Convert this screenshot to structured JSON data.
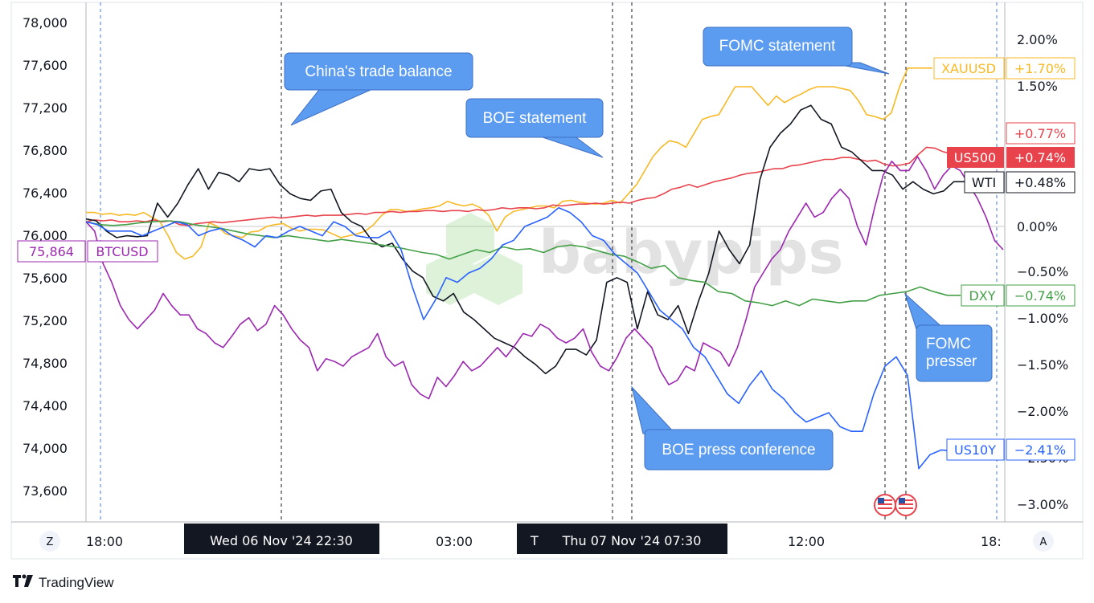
{
  "chart_data": {
    "type": "line",
    "left_axis": {
      "ticks": [
        "78,000",
        "77,600",
        "77,200",
        "76,800",
        "76,400",
        "76,000",
        "75,600",
        "75,200",
        "74,800",
        "74,400",
        "74,000",
        "73,600"
      ],
      "ylim": [
        73300,
        78200
      ]
    },
    "right_axis": {
      "ticks": [
        "2.00%",
        "1.50%",
        "0.00%",
        "−0.50%",
        "−1.00%",
        "−1.50%",
        "−2.00%",
        "−2.50%",
        "−3.00%"
      ],
      "ylim_pct": [
        -3.2,
        2.0
      ]
    },
    "time_axis": {
      "ticks": [
        "18:00",
        "03:00",
        "12:00",
        "18:"
      ],
      "highlight_labels": [
        "Wed 06 Nov '24   22:30",
        "T",
        "Thu 07 Nov '24   07:30"
      ],
      "left_button": "Z",
      "right_button": "A"
    },
    "series": [
      {
        "name": "XAUUSD",
        "color": "#f7b924",
        "end_label": "+1.70%",
        "values": [
          0.15,
          0.15,
          0.13,
          0.14,
          0.12,
          0.13,
          0.12,
          0.15,
          0.1,
          0.05,
          -0.1,
          -0.28,
          -0.35,
          -0.32,
          -0.22,
          0.04,
          0.0,
          -0.08,
          -0.1,
          -0.12,
          -0.06,
          -0.05,
          0.0,
          0.02,
          0.03,
          -0.02,
          -0.05,
          -0.03,
          -0.03,
          -0.04,
          -0.08,
          -0.12,
          -0.1,
          -0.08,
          -0.05,
          0.02,
          0.12,
          0.18,
          0.18,
          0.16,
          0.17,
          0.19,
          0.2,
          0.22,
          0.27,
          0.24,
          0.22,
          0.24,
          0.2,
          0.12,
          -0.05,
          0.1,
          0.16,
          0.18,
          0.2,
          0.22,
          0.22,
          0.2,
          0.27,
          0.28,
          0.26,
          0.25,
          0.24,
          0.25,
          0.28,
          0.25,
          0.35,
          0.45,
          0.6,
          0.75,
          0.85,
          0.92,
          0.9,
          0.85,
          1.0,
          1.15,
          1.18,
          1.2,
          1.35,
          1.5,
          1.5,
          1.5,
          1.4,
          1.3,
          1.4,
          1.33,
          1.38,
          1.42,
          1.47,
          1.5,
          1.5,
          1.5,
          1.48,
          1.46,
          1.35,
          1.2,
          1.18,
          1.15,
          1.22,
          1.5,
          1.7,
          1.7,
          1.7,
          1.7
        ]
      },
      {
        "name": "US500",
        "color": "#e8434c",
        "end_label": "+0.74%",
        "values": [
          0.05,
          0.07,
          0.06,
          0.07,
          0.05,
          0.05,
          0.06,
          0.05,
          0.07,
          0.05,
          0.06,
          0.02,
          0.01,
          0.03,
          0.04,
          0.05,
          0.04,
          0.05,
          0.06,
          0.07,
          0.08,
          0.09,
          0.1,
          0.09,
          0.1,
          0.11,
          0.12,
          0.11,
          0.12,
          0.12,
          0.12,
          0.13,
          0.14,
          0.13,
          0.15,
          0.15,
          0.16,
          0.15,
          0.16,
          0.16,
          0.17,
          0.17,
          0.16,
          0.17,
          0.17,
          0.16,
          0.18,
          0.17,
          0.18,
          0.2,
          0.19,
          0.2,
          0.2,
          0.19,
          0.2,
          0.23,
          0.22,
          0.23,
          0.24,
          0.24,
          0.25,
          0.24,
          0.25,
          0.26,
          0.25,
          0.28,
          0.3,
          0.31,
          0.35,
          0.4,
          0.42,
          0.45,
          0.42,
          0.45,
          0.48,
          0.5,
          0.52,
          0.55,
          0.57,
          0.58,
          0.6,
          0.62,
          0.62,
          0.65,
          0.66,
          0.68,
          0.7,
          0.72,
          0.72,
          0.74,
          0.74,
          0.72,
          0.7,
          0.71,
          0.67,
          0.65,
          0.66,
          0.68,
          0.77,
          0.85,
          0.84,
          0.8,
          0.78,
          0.74
        ]
      },
      {
        "name": "WTI",
        "color": "#131722",
        "end_label": "+0.48%",
        "values": [
          0.08,
          0.06,
          -0.05,
          -0.12,
          -0.1,
          -0.11,
          -0.1,
          0.25,
          0.1,
          0.25,
          0.45,
          0.62,
          0.4,
          0.58,
          0.55,
          0.48,
          0.62,
          0.6,
          0.62,
          0.45,
          0.35,
          0.3,
          0.28,
          0.38,
          0.4,
          0.15,
          0.05,
          0.0,
          -0.15,
          -0.22,
          -0.18,
          -0.35,
          -0.48,
          -0.55,
          -0.75,
          -0.8,
          -0.72,
          -0.92,
          -1.0,
          -1.1,
          -1.2,
          -1.25,
          -1.3,
          -1.4,
          -1.48,
          -1.58,
          -1.5,
          -1.32,
          -1.32,
          -1.38,
          -1.22,
          -0.6,
          -0.55,
          -0.6,
          -1.1,
          -0.7,
          -0.95,
          -1.0,
          -0.85,
          -1.15,
          -0.8,
          -0.5,
          -0.05,
          -0.25,
          -0.4,
          -0.2,
          0.5,
          0.85,
          1.0,
          1.1,
          1.25,
          1.3,
          1.15,
          1.1,
          0.85,
          0.8,
          0.7,
          0.6,
          0.6,
          0.55,
          0.4,
          0.48,
          0.4,
          0.35,
          0.38,
          0.48,
          0.48,
          0.48
        ]
      },
      {
        "name": "BTCUSD",
        "color": "#9c27b0",
        "end_label": "75,864",
        "values": [
          0.05,
          -0.05,
          -0.4,
          -0.6,
          -0.85,
          -1.0,
          -1.1,
          -1.0,
          -0.9,
          -0.72,
          -0.85,
          -0.95,
          -0.95,
          -1.1,
          -1.15,
          -1.25,
          -1.3,
          -1.18,
          -1.05,
          -0.98,
          -1.12,
          -1.05,
          -0.85,
          -0.95,
          -1.1,
          -1.22,
          -1.3,
          -1.55,
          -1.42,
          -1.45,
          -1.5,
          -1.4,
          -1.35,
          -1.3,
          -1.15,
          -1.4,
          -1.5,
          -1.45,
          -1.7,
          -1.8,
          -1.85,
          -1.62,
          -1.72,
          -1.6,
          -1.45,
          -1.55,
          -1.5,
          -1.4,
          -1.3,
          -1.4,
          -1.28,
          -1.15,
          -1.18,
          -1.05,
          -1.1,
          -1.2,
          -1.25,
          -1.2,
          -1.1,
          -1.35,
          -1.5,
          -1.55,
          -1.4,
          -1.2,
          -1.1,
          -1.2,
          -1.3,
          -1.55,
          -1.7,
          -1.65,
          -1.5,
          -1.55,
          -1.25,
          -1.3,
          -1.35,
          -1.5,
          -1.3,
          -1.0,
          -0.65,
          -0.5,
          -0.35,
          -0.25,
          -0.05,
          0.1,
          0.25,
          0.1,
          0.15,
          0.3,
          0.4,
          0.3,
          0.0,
          -0.2,
          0.2,
          0.55,
          0.7,
          0.6,
          0.6,
          0.75,
          0.6,
          0.4,
          0.55,
          0.65,
          0.6,
          0.45,
          0.3,
          0.1,
          -0.15,
          -0.25
        ]
      },
      {
        "name": "DXY",
        "color": "#43a047",
        "end_label": "−0.74%",
        "values": [
          0.05,
          0.02,
          0.01,
          0.02,
          0.04,
          0.05,
          0.06,
          0.05,
          0.02,
          0.0,
          -0.02,
          -0.05,
          -0.08,
          -0.1,
          -0.12,
          -0.1,
          -0.12,
          -0.14,
          -0.16,
          -0.14,
          -0.16,
          -0.18,
          -0.2,
          -0.22,
          -0.25,
          -0.28,
          -0.3,
          -0.35,
          -0.3,
          -0.25,
          -0.28,
          -0.22,
          -0.25,
          -0.24,
          -0.28,
          -0.22,
          -0.2,
          -0.22,
          -0.26,
          -0.3,
          -0.32,
          -0.38,
          -0.45,
          -0.42,
          -0.55,
          -0.58,
          -0.6,
          -0.7,
          -0.72,
          -0.8,
          -0.82,
          -0.85,
          -0.8,
          -0.85,
          -0.78,
          -0.8,
          -0.82,
          -0.8,
          -0.8,
          -0.74,
          -0.72,
          -0.7,
          -0.65,
          -0.7,
          -0.74,
          -0.74
        ]
      },
      {
        "name": "US10Y",
        "color": "#2962ff",
        "end_label": "−2.41%",
        "values": [
          0.05,
          0.02,
          -0.05,
          -0.05,
          -0.05,
          -0.1,
          -0.05,
          0.0,
          0.05,
          0.02,
          -0.1,
          -0.05,
          -0.02,
          -0.1,
          -0.15,
          -0.22,
          -0.1,
          -0.12,
          -0.05,
          0.0,
          -0.05,
          -0.1,
          0.05,
          0.0,
          -0.1,
          -0.12,
          -0.12,
          -0.05,
          -0.25,
          -0.65,
          -1.0,
          -0.8,
          -0.55,
          -0.6,
          -0.5,
          -0.45,
          -0.35,
          -0.2,
          -0.15,
          0.0,
          0.05,
          0.1,
          0.2,
          0.15,
          0.05,
          -0.1,
          -0.15,
          -0.3,
          -0.4,
          -0.5,
          -0.7,
          -0.9,
          -1.0,
          -1.1,
          -1.3,
          -1.4,
          -1.6,
          -1.8,
          -1.9,
          -1.7,
          -1.55,
          -1.75,
          -1.85,
          -2.0,
          -2.1,
          -2.05,
          -2.0,
          -2.15,
          -2.2,
          -2.2,
          -1.8,
          -1.5,
          -1.4,
          -1.6,
          -2.6,
          -2.45,
          -2.4,
          -2.41
        ]
      }
    ],
    "annotations": [
      "China's trade balance",
      "BOE statement",
      "FOMC statement",
      "BOE press conference",
      "FOMC presser"
    ],
    "watermark": "babypips",
    "grid": false,
    "legend": "right-edge price tags"
  },
  "tags": {
    "us500_prev": "+0.77%",
    "xauusd_name": "XAUUSD",
    "us500_name": "US500",
    "wti_name": "WTI",
    "dxy_name": "DXY",
    "us10y_name": "US10Y",
    "btc_name": "BTCUSD",
    "btc_price": "75,864"
  },
  "footer": {
    "logo_text": "TradingView"
  },
  "colors": {
    "callout": "#5b9cf1",
    "axis": "#b2b5be",
    "zero_line": "#c8c9cc"
  }
}
